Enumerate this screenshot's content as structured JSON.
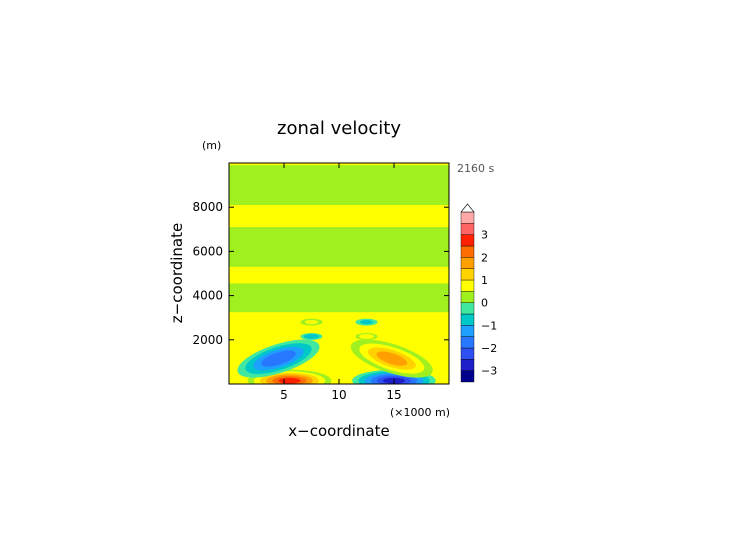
{
  "chart_data": {
    "type": "heatmap",
    "title": "zonal velocity",
    "xlabel": "x−coordinate",
    "ylabel": "z−coordinate",
    "x_unit": "(×1000 m)",
    "y_unit": "(m)",
    "time_label": "2160 s",
    "xlim": [
      0,
      20
    ],
    "ylim": [
      0,
      10000
    ],
    "x_ticks": [
      5,
      10,
      15
    ],
    "y_ticks": [
      2000,
      4000,
      6000,
      8000
    ],
    "colorbar": {
      "ticks": [
        3,
        2,
        1,
        0,
        -1,
        -2,
        -3
      ],
      "levels": [
        -3.5,
        -3,
        -2.5,
        -2,
        -1.5,
        -1,
        -0.5,
        0,
        0.5,
        1,
        1.5,
        2,
        2.5,
        3,
        3.5
      ],
      "extend": "max",
      "colors": [
        "#00008c",
        "#1e1ec8",
        "#2f50f0",
        "#2878ff",
        "#1ea0ff",
        "#00c8c8",
        "#40e8a0",
        "#a0f020",
        "#ffff00",
        "#ffd200",
        "#ffa000",
        "#ff6e00",
        "#ff2000",
        "#ff6464",
        "#ffa8a8"
      ]
    },
    "features": [
      {
        "x": 5.5,
        "z": 150,
        "value": 3.0
      },
      {
        "x": 15.0,
        "z": 150,
        "value": -3.0
      },
      {
        "x": 4.5,
        "z": 1150,
        "value": -2.2
      },
      {
        "x": 14.8,
        "z": 1150,
        "value": 2.0
      },
      {
        "x": 7.5,
        "z": 2150,
        "value": -1.2
      },
      {
        "x": 12.5,
        "z": 2150,
        "value": 1.2
      },
      {
        "x": 7.5,
        "z": 2800,
        "value": 0.8
      },
      {
        "x": 12.5,
        "z": 2800,
        "value": -0.8
      }
    ]
  }
}
